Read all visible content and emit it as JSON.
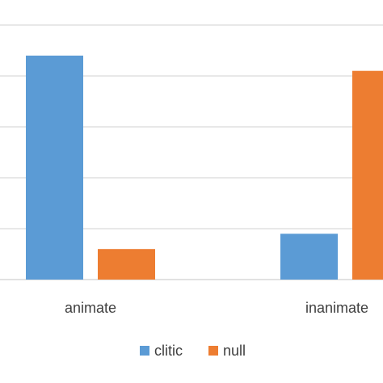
{
  "chart_data": {
    "type": "bar",
    "categories": [
      "animate",
      "inanimate"
    ],
    "series": [
      {
        "name": "clitic",
        "values": [
          0.88,
          0.18
        ],
        "color": "#5b9bd5"
      },
      {
        "name": "null",
        "values": [
          0.12,
          0.82
        ],
        "color": "#ed7d31"
      }
    ],
    "ylim": [
      0,
      1.1
    ],
    "yticks": [
      0,
      0.2,
      0.4,
      0.6,
      0.8,
      1.0,
      1.2
    ],
    "grid": true,
    "legend_position": "bottom",
    "gridline_color": "#d9d9d9"
  }
}
